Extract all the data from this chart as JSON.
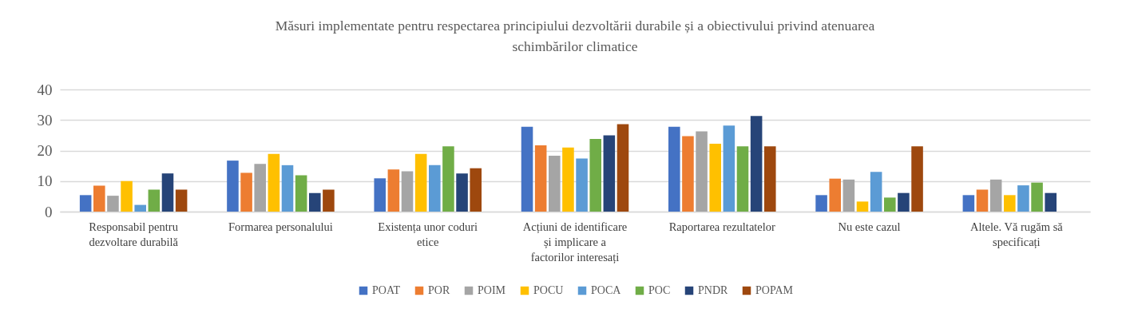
{
  "chart_data": {
    "type": "bar",
    "title": "Măsuri implementate pentru respectarea principiului dezvoltării durabile și a obiectivului privind atenuarea schimbărilor climatice",
    "categories": [
      "Responsabil pentru dezvoltare durabilă",
      "Formarea personalului",
      "Existența unor coduri etice",
      "Acțiuni de identificare și implicare a factorilor interesați",
      "Raportarea rezultatelor",
      "Nu este cazul",
      "Altele. Vă rugăm să specificați"
    ],
    "series": [
      {
        "name": "POAT",
        "color": "#4472c4",
        "values": [
          5.4,
          16.7,
          10.9,
          27.8,
          27.8,
          5.4,
          5.4
        ]
      },
      {
        "name": "POR",
        "color": "#ed7d31",
        "values": [
          8.5,
          12.7,
          13.8,
          21.7,
          24.7,
          10.8,
          7.2
        ]
      },
      {
        "name": "POIM",
        "color": "#a5a5a5",
        "values": [
          5.2,
          15.6,
          13.2,
          18.3,
          26.3,
          10.5,
          10.5
        ]
      },
      {
        "name": "POCU",
        "color": "#ffc000",
        "values": [
          10,
          18.9,
          18.9,
          21,
          22.2,
          3.3,
          5.4
        ]
      },
      {
        "name": "POCA",
        "color": "#5b9bd5",
        "values": [
          2.2,
          15.2,
          15.2,
          17.4,
          28.2,
          13,
          8.6
        ]
      },
      {
        "name": "POC",
        "color": "#70ad47",
        "values": [
          7.2,
          11.9,
          21.4,
          23.8,
          21.4,
          4.6,
          9.5
        ]
      },
      {
        "name": "PNDR",
        "color": "#264478",
        "values": [
          12.5,
          6.1,
          12.5,
          25,
          31.3,
          6.1,
          6.1
        ]
      },
      {
        "name": "POPAM",
        "color": "#9e480e",
        "values": [
          7.2,
          7.2,
          14.2,
          28.6,
          21.4,
          21.4,
          null
        ]
      }
    ],
    "ylim": [
      0,
      40
    ],
    "yticks": [
      0,
      10,
      20,
      30,
      40
    ],
    "grid": "y",
    "legend": "bottom"
  }
}
